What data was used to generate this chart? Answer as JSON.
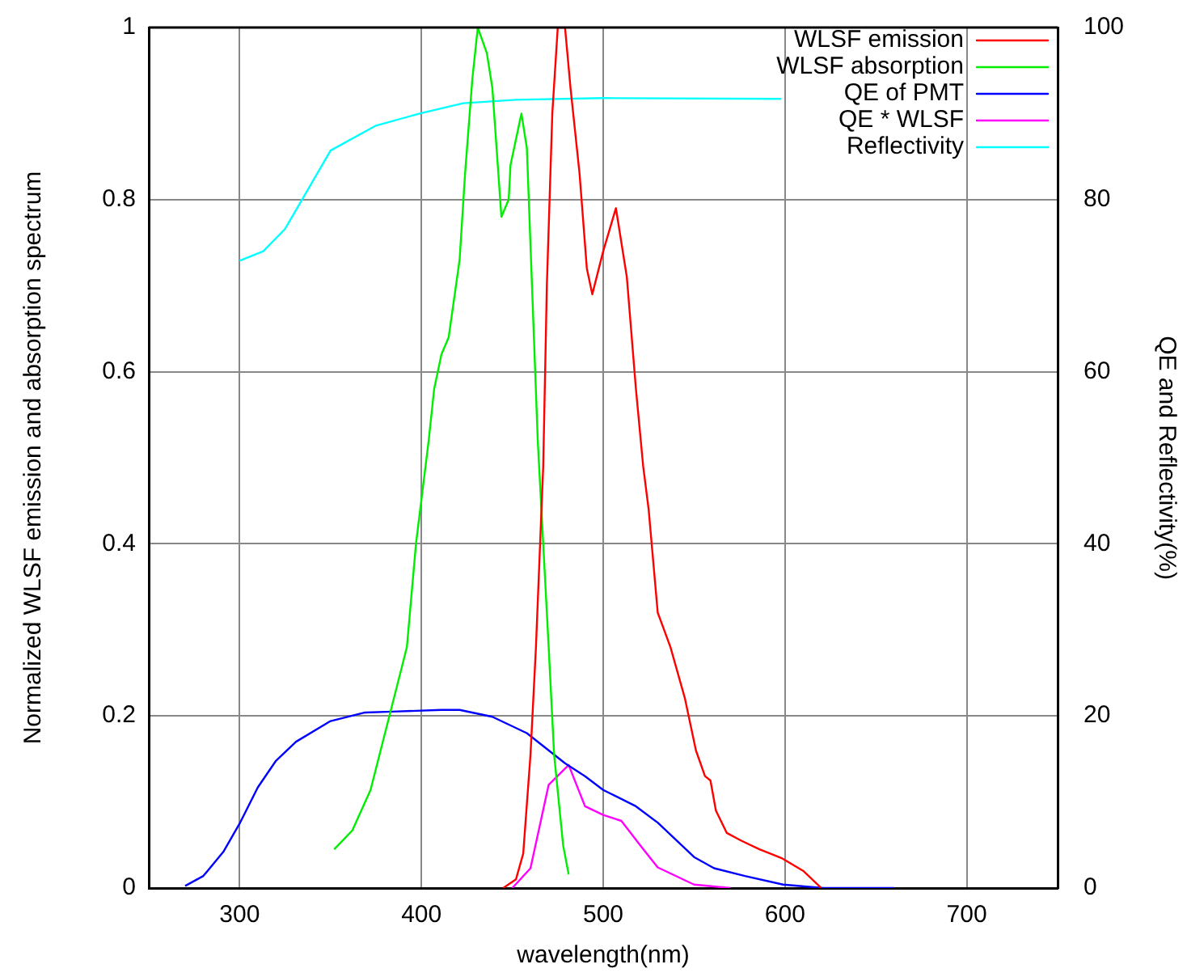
{
  "chart_data": {
    "type": "line",
    "xlabel": "wavelength(nm)",
    "ylabel": "Normalized WLSF emission and absorption spectrum",
    "y2label": "QE and Reflectivity(%)",
    "xlim": [
      250,
      750
    ],
    "xticks": [
      300,
      400,
      500,
      600,
      700
    ],
    "ylim": [
      0,
      1
    ],
    "yticks": [
      0,
      0.2,
      0.4,
      0.6,
      0.8,
      1
    ],
    "y2lim": [
      0,
      100
    ],
    "y2ticks": [
      0,
      20,
      40,
      60,
      80,
      100
    ],
    "grid": true,
    "legend": "top right",
    "series": [
      {
        "name": "WLSF emission",
        "color": "#ff0000",
        "x": [
          445,
          452,
          456,
          460,
          463,
          467,
          469,
          472,
          475,
          479,
          482,
          487,
          491,
          494,
          500,
          507,
          513,
          518,
          522,
          525,
          530,
          537,
          545,
          551,
          556,
          559,
          562,
          568,
          576,
          586,
          598,
          610,
          620
        ],
        "values": [
          0,
          0.01,
          0.04,
          0.155,
          0.28,
          0.49,
          0.7,
          0.9,
          1,
          1,
          0.93,
          0.83,
          0.72,
          0.69,
          0.74,
          0.79,
          0.71,
          0.58,
          0.49,
          0.44,
          0.32,
          0.28,
          0.22,
          0.16,
          0.13,
          0.125,
          0.09,
          0.064,
          0.055,
          0.045,
          0.035,
          0.02,
          0
        ]
      },
      {
        "name": "WLSF absorption",
        "color": "#00ee00",
        "x": [
          352,
          362,
          372,
          389,
          392,
          397,
          404,
          407,
          411,
          415,
          421,
          424,
          428,
          431,
          436,
          439,
          444,
          448,
          449,
          455,
          458,
          464,
          470,
          473,
          478,
          481
        ],
        "values": [
          0.045,
          0.067,
          0.114,
          0.255,
          0.28,
          0.4,
          0.52,
          0.58,
          0.62,
          0.64,
          0.73,
          0.83,
          0.94,
          1,
          0.97,
          0.93,
          0.78,
          0.8,
          0.84,
          0.9,
          0.86,
          0.52,
          0.28,
          0.155,
          0.049,
          0.016
        ]
      },
      {
        "name": "QE of PMT",
        "color": "#0000ff",
        "axis": "y2",
        "x": [
          270,
          280,
          291,
          300,
          310,
          320,
          331,
          350,
          369,
          384,
          411,
          421,
          439,
          458,
          479,
          490,
          500,
          518,
          530,
          550,
          561,
          578,
          599,
          621,
          660
        ],
        "values": [
          0.25,
          1.4,
          4.2,
          7.5,
          11.7,
          14.8,
          17,
          19.4,
          20.4,
          20.5,
          20.7,
          20.7,
          19.9,
          18,
          14.5,
          13,
          11.4,
          9.5,
          7.6,
          3.6,
          2.3,
          1.4,
          0.4,
          0,
          0
        ]
      },
      {
        "name": "QE * WLSF",
        "color": "#ff00ff",
        "axis": "y2",
        "x": [
          450,
          460,
          470,
          481,
          490,
          500,
          510,
          521,
          530,
          550,
          570
        ],
        "values": [
          0,
          2.3,
          12,
          14.3,
          9.5,
          8.5,
          7.8,
          4.8,
          2.4,
          0.4,
          0
        ]
      },
      {
        "name": "Reflectivity",
        "color": "#00ffff",
        "axis": "y2",
        "x": [
          300,
          313,
          325,
          350,
          375,
          399,
          423,
          452,
          500,
          598
        ],
        "values": [
          72.9,
          74,
          76.6,
          85.7,
          88.6,
          90,
          91.2,
          91.6,
          91.8,
          91.7
        ]
      }
    ]
  }
}
